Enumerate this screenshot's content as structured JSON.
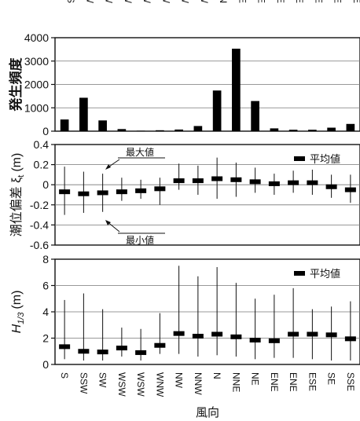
{
  "chart_data": [
    {
      "type": "bar",
      "ylabel": "発生頻度",
      "ylim": [
        0,
        4000
      ],
      "yticks": [
        0,
        1000,
        2000,
        3000,
        4000
      ],
      "categories": [
        "S",
        "SSW",
        "SW",
        "WSW",
        "WSW",
        "WNW",
        "NW",
        "NNW",
        "N",
        "NNE",
        "NE",
        "ENE",
        "ENE",
        "ESE",
        "SE",
        "SSE"
      ],
      "values": [
        500,
        1430,
        460,
        90,
        20,
        40,
        70,
        220,
        1740,
        3530,
        1290,
        120,
        60,
        60,
        150,
        310
      ]
    },
    {
      "type": "range-bar",
      "ylabel": "潮位偏差 ξ",
      "ylabel_sub": "t",
      "yunit": "(m)",
      "ylim": [
        -0.6,
        0.4
      ],
      "yticks": [
        0.4,
        0.2,
        0,
        -0.2,
        -0.4,
        -0.6
      ],
      "legend": "平均値",
      "annotations": [
        "最大値",
        "最小値"
      ],
      "series": [
        {
          "name": "平均値",
          "values": [
            -0.07,
            -0.09,
            -0.08,
            -0.07,
            -0.06,
            -0.04,
            0.04,
            0.04,
            0.06,
            0.05,
            0.03,
            0.01,
            0.02,
            0.02,
            -0.02,
            -0.05
          ]
        },
        {
          "name": "最大値",
          "values": [
            0.18,
            0.13,
            0.11,
            0.07,
            0.05,
            0.07,
            0.21,
            0.19,
            0.27,
            0.22,
            0.17,
            0.11,
            0.14,
            0.15,
            0.1,
            0.1
          ]
        },
        {
          "name": "最小値",
          "values": [
            -0.3,
            -0.28,
            -0.27,
            -0.16,
            -0.14,
            -0.2,
            -0.05,
            -0.1,
            -0.14,
            -0.12,
            -0.08,
            -0.1,
            -0.08,
            -0.1,
            -0.13,
            -0.18
          ]
        }
      ]
    },
    {
      "type": "range-bar",
      "ylabel": "H",
      "ylabel_sub": "1/3",
      "yunit": "(m)",
      "ylim": [
        0,
        8
      ],
      "yticks": [
        0,
        2,
        4,
        6,
        8
      ],
      "xlabel": "風向",
      "legend": "平均値",
      "series": [
        {
          "name": "平均値",
          "values": [
            1.35,
            1.0,
            0.95,
            1.25,
            0.9,
            1.45,
            2.35,
            2.15,
            2.3,
            2.1,
            1.85,
            1.8,
            2.3,
            2.3,
            2.25,
            1.95
          ]
        },
        {
          "name": "最大値",
          "values": [
            4.9,
            5.4,
            4.2,
            2.8,
            2.7,
            3.9,
            7.5,
            6.7,
            7.4,
            6.2,
            5.0,
            5.3,
            5.8,
            4.2,
            4.4,
            4.8
          ]
        },
        {
          "name": "最小値",
          "values": [
            0.4,
            0.3,
            0.3,
            0.6,
            0.3,
            0.8,
            0.8,
            0.6,
            0.7,
            0.6,
            0.4,
            0.5,
            0.5,
            0.4,
            0.3,
            0.3
          ]
        }
      ]
    }
  ]
}
